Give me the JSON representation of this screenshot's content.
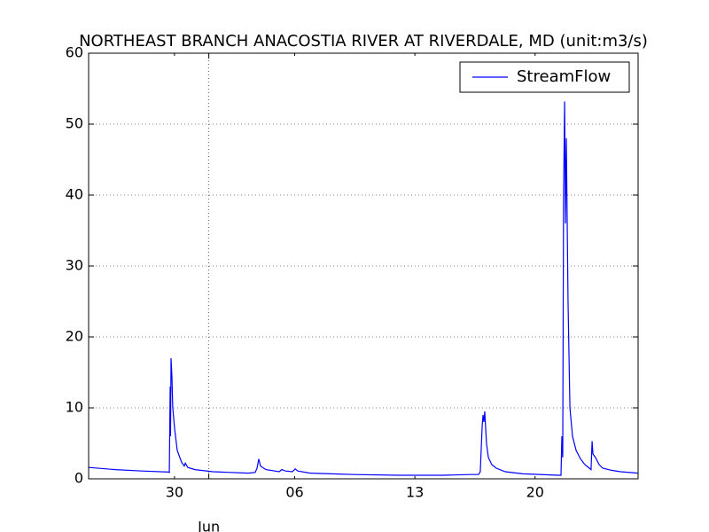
{
  "chart_data": {
    "type": "line",
    "title": "NORTHEAST BRANCH ANACOSTIA RIVER AT RIVERDALE, MD (unit:m3/s)",
    "x": [
      25.0,
      26.55,
      28.1,
      29.65,
      29.7,
      29.75,
      29.77,
      29.8,
      29.85,
      29.9,
      30.01,
      30.16,
      30.42,
      30.57,
      30.63,
      30.78,
      31.19,
      32.23,
      34.29,
      34.7,
      34.81,
      34.91,
      35.01,
      35.32,
      36.1,
      36.25,
      36.46,
      36.87,
      37.03,
      37.18,
      37.9,
      40.48,
      43.06,
      45.65,
      47.19,
      47.71,
      47.81,
      47.92,
      47.97,
      48.02,
      48.07,
      48.17,
      48.28,
      48.48,
      48.74,
      49.26,
      50.29,
      52.35,
      52.51,
      52.56,
      52.61,
      52.66,
      52.72,
      52.77,
      52.82,
      52.92,
      53.03,
      53.18,
      53.39,
      53.65,
      53.9,
      54.16,
      54.26,
      54.32,
      54.37,
      54.52,
      54.73,
      54.94,
      55.45,
      55.97,
      57.0
    ],
    "series": [
      {
        "name": "StreamFlow",
        "color": "#0000ff",
        "values": [
          1.6,
          1.3,
          1.1,
          0.95,
          0.9,
          13,
          6,
          17,
          14.5,
          10,
          7,
          4,
          2.3,
          1.8,
          2.2,
          1.6,
          1.3,
          1.0,
          0.8,
          0.9,
          1.5,
          2.8,
          1.8,
          1.3,
          1.0,
          1.3,
          1.1,
          1.0,
          1.4,
          1.1,
          0.8,
          0.6,
          0.5,
          0.5,
          0.6,
          0.6,
          1.0,
          7.5,
          9.0,
          8.0,
          9.5,
          5,
          3,
          2,
          1.5,
          1.0,
          0.7,
          0.5,
          0.5,
          6,
          3,
          40,
          53.2,
          36,
          48,
          25,
          10,
          6,
          4,
          2.8,
          2.0,
          1.5,
          1.3,
          5.3,
          3.5,
          3,
          2,
          1.5,
          1.2,
          1.0,
          0.8
        ]
      }
    ],
    "xlim": [
      25,
      57
    ],
    "xticks": [
      {
        "value": 30,
        "label": "30"
      },
      {
        "value": 37,
        "label": "06"
      },
      {
        "value": 44,
        "label": "13"
      },
      {
        "value": 51,
        "label": "20"
      }
    ],
    "xmajor_ticks": [
      {
        "value": 32,
        "label": "Jun"
      }
    ],
    "ylim": [
      0,
      60
    ],
    "yticks": [
      0,
      10,
      20,
      30,
      40,
      50,
      60
    ],
    "grid": true,
    "legend": "upper right"
  }
}
